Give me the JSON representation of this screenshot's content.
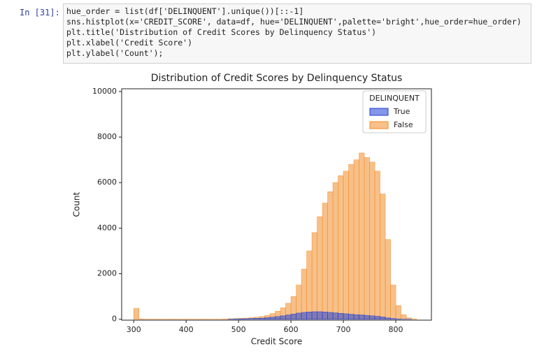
{
  "cell": {
    "prompt": "In [31]:",
    "lines": [
      "hue_order = list(df['DELINQUENT'].unique())[::-1]",
      "sns.histplot(x='CREDIT_SCORE', data=df, hue='DELINQUENT',palette='bright',hue_order=hue_order)",
      "plt.title('Distribution of Credit Scores by Delinquency Status')",
      "plt.xlabel('Credit Score')",
      "plt.ylabel('Count');"
    ]
  },
  "chart_data": {
    "type": "histogram",
    "title": "Distribution of Credit Scores by Delinquency Status",
    "x_label": "Credit Score",
    "y_label": "Count",
    "legend_title": "DELINQUENT",
    "legend_position": "upper right",
    "bins": [
      300,
      310,
      320,
      330,
      340,
      350,
      360,
      370,
      380,
      390,
      400,
      410,
      420,
      430,
      440,
      450,
      460,
      470,
      480,
      490,
      500,
      510,
      520,
      530,
      540,
      550,
      560,
      570,
      580,
      590,
      600,
      610,
      620,
      630,
      640,
      650,
      660,
      670,
      680,
      690,
      700,
      710,
      720,
      730,
      740,
      750,
      760,
      770,
      780,
      790,
      800,
      810,
      820,
      830,
      840
    ],
    "series": [
      {
        "name": "True",
        "color": "#1f3fd6",
        "values": [
          0,
          0,
          0,
          0,
          0,
          0,
          0,
          0,
          0,
          0,
          0,
          0,
          0,
          0,
          0,
          0,
          0,
          0,
          5,
          10,
          15,
          20,
          30,
          40,
          50,
          70,
          90,
          120,
          150,
          190,
          230,
          270,
          300,
          320,
          330,
          330,
          320,
          300,
          280,
          260,
          240,
          220,
          200,
          190,
          170,
          150,
          130,
          100,
          60,
          30,
          10,
          3,
          1,
          0
        ]
      },
      {
        "name": "False",
        "color": "#f28c28",
        "values": [
          480,
          10,
          5,
          5,
          5,
          5,
          5,
          5,
          5,
          5,
          5,
          5,
          5,
          5,
          5,
          5,
          5,
          10,
          20,
          30,
          40,
          50,
          70,
          90,
          120,
          170,
          250,
          350,
          500,
          700,
          1000,
          1500,
          2200,
          3000,
          3800,
          4500,
          5100,
          5600,
          6000,
          6300,
          6500,
          6800,
          7000,
          7300,
          7100,
          6900,
          6500,
          5500,
          3500,
          1500,
          600,
          200,
          60,
          10
        ]
      }
    ],
    "xlim": [
      277,
      868
    ],
    "ylim": [
      -40,
      10120
    ],
    "xticks": [
      300,
      400,
      500,
      600,
      700,
      800
    ],
    "yticks": [
      0,
      2000,
      4000,
      6000,
      8000,
      10000
    ]
  }
}
